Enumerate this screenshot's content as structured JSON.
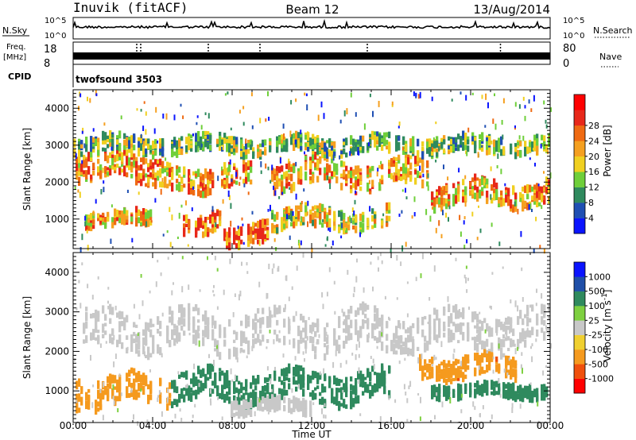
{
  "header": {
    "station": "Inuvik (fitACF)",
    "beam": "Beam 12",
    "date": "13/Aug/2014"
  },
  "top_panels": {
    "nsky_label": "N.Sky",
    "nsky_ticks": [
      "10^5",
      "10^0"
    ],
    "nsearch_label": "N.Search",
    "nsearch_ticks": [
      "10^5",
      "10^0"
    ],
    "freq_label": "Freq.",
    "freq_unit": "[MHz]",
    "freq_ticks": [
      "18",
      "8"
    ],
    "nave_label": "Nave",
    "nave_ticks": [
      "80",
      "0"
    ],
    "cpid_label": "CPID",
    "cpid_value": "twofsound 3503"
  },
  "colors": {
    "power_scale": [
      "#0a14ff",
      "#1f4fb3",
      "#2f8a5e",
      "#6fcf3a",
      "#f0d020",
      "#f5a020",
      "#ef6a12",
      "#e8281a",
      "#ff0000"
    ],
    "velocity_scale": [
      "#ff0000",
      "#f0500c",
      "#f59a1e",
      "#f0d030",
      "#c8c8c8",
      "#7ed040",
      "#2f8a5e",
      "#1f4fa8",
      "#0a14ff"
    ]
  },
  "chart_data": [
    {
      "type": "heatmap",
      "ylabel": "Slant Range [km]",
      "ylim": [
        200,
        4500
      ],
      "yticks": [
        1000,
        2000,
        3000,
        4000
      ],
      "x": [
        "00:00",
        "04:00",
        "08:00",
        "12:00",
        "16:00",
        "20:00",
        "00:00"
      ],
      "colorbar": {
        "label": "Power [dB]",
        "ticks": [
          4,
          8,
          12,
          16,
          20,
          24,
          28
        ],
        "range": [
          0,
          30
        ]
      },
      "bands": [
        {
          "start_h": 0.2,
          "end_h": 4.5,
          "center_km": 2400,
          "width_km": 700,
          "value": 24
        },
        {
          "start_h": 4.5,
          "end_h": 9.0,
          "center_km": 2100,
          "width_km": 600,
          "value": 22
        },
        {
          "start_h": 0.5,
          "end_h": 4.0,
          "center_km": 1000,
          "width_km": 350,
          "value": 22
        },
        {
          "start_h": 5.5,
          "end_h": 7.5,
          "center_km": 900,
          "width_km": 500,
          "value": 28
        },
        {
          "start_h": 7.5,
          "end_h": 10.0,
          "center_km": 600,
          "width_km": 500,
          "value": 28
        },
        {
          "start_h": 10.0,
          "end_h": 18.0,
          "center_km": 2200,
          "width_km": 700,
          "value": 22
        },
        {
          "start_h": 10.0,
          "end_h": 16.0,
          "center_km": 1000,
          "width_km": 500,
          "value": 18
        },
        {
          "start_h": 18.0,
          "end_h": 24.0,
          "center_km": 1700,
          "width_km": 600,
          "value": 22
        },
        {
          "start_h": 0.0,
          "end_h": 24.0,
          "center_km": 3000,
          "width_km": 400,
          "value": 14
        }
      ]
    },
    {
      "type": "heatmap",
      "ylabel": "Slant Range [km]",
      "ylim": [
        200,
        4500
      ],
      "yticks": [
        1000,
        2000,
        3000,
        4000
      ],
      "x": [
        "00:00",
        "04:00",
        "08:00",
        "12:00",
        "16:00",
        "20:00",
        "00:00"
      ],
      "xlabel": "Time UT",
      "colorbar": {
        "label": "Velocity [m s^-1]",
        "ticks": [
          -1000,
          -500,
          -100,
          -25,
          25,
          100,
          500,
          1000
        ]
      },
      "bands": [
        {
          "start_h": 0.5,
          "end_h": 24.0,
          "center_km": 2500,
          "width_km": 900,
          "value": 0
        },
        {
          "start_h": 0.2,
          "end_h": 5.0,
          "center_km": 1000,
          "width_km": 700,
          "value": -300
        },
        {
          "start_h": 5.0,
          "end_h": 16.0,
          "center_km": 1100,
          "width_km": 700,
          "value": 300
        },
        {
          "start_h": 8.0,
          "end_h": 12.0,
          "center_km": 600,
          "width_km": 300,
          "value": 10
        },
        {
          "start_h": 17.5,
          "end_h": 22.5,
          "center_km": 1600,
          "width_km": 500,
          "value": -400
        },
        {
          "start_h": 18.0,
          "end_h": 24.0,
          "center_km": 1000,
          "width_km": 300,
          "value": 150
        }
      ]
    }
  ]
}
